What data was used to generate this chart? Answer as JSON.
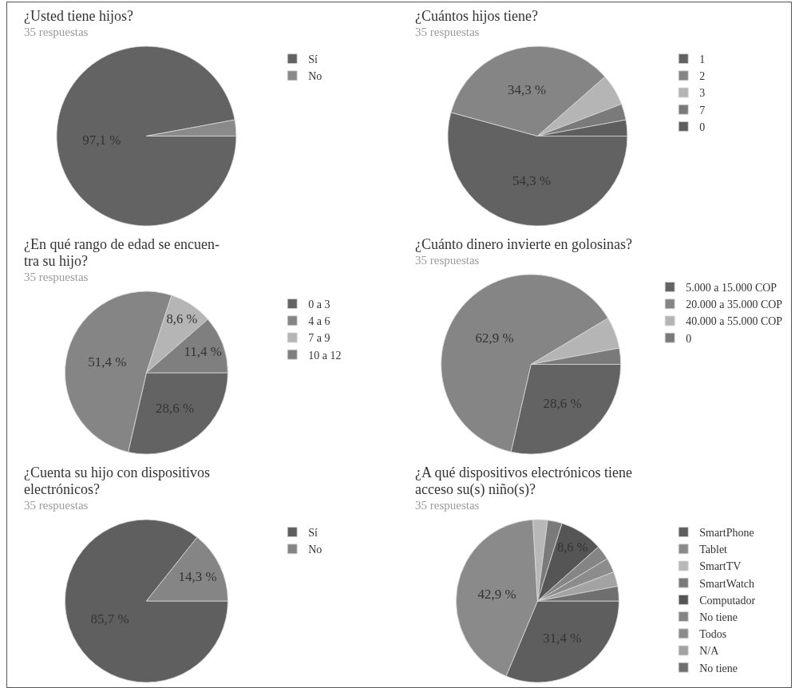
{
  "chart_data": [
    {
      "type": "pie",
      "title": "¿Usted tiene hijos?",
      "subtitle": "35 respuestas",
      "categories": [
        "Sí",
        "No"
      ],
      "values": [
        97.1,
        2.9
      ],
      "colors": [
        "#636363",
        "#8a8a8a"
      ],
      "value_labels": [
        "97,1 %",
        null
      ],
      "legend": "top right"
    },
    {
      "type": "pie",
      "title": "¿Cuántos hijos tiene?",
      "subtitle": "35 respuestas",
      "categories": [
        "1",
        "2",
        "3",
        "7",
        "0"
      ],
      "values": [
        54.3,
        34.3,
        5.7,
        2.9,
        2.9
      ],
      "colors": [
        "#626262",
        "#858585",
        "#b5b5b5",
        "#7a7a7a",
        "#5e5e5e"
      ],
      "value_labels": [
        "54,3 %",
        "34,3 %",
        null,
        null,
        null
      ],
      "legend": "top right"
    },
    {
      "type": "pie",
      "title": "¿En qué rango de edad se encuen-\ntra su hijo?",
      "subtitle": "35 respuestas",
      "categories": [
        "0 a 3",
        "4 a 6",
        "7 a 9",
        "10 a 12"
      ],
      "values": [
        28.6,
        51.4,
        8.6,
        11.4
      ],
      "colors": [
        "#636363",
        "#858585",
        "#b5b5b5",
        "#7f7f7f"
      ],
      "value_labels": [
        "28,6 %",
        "51,4 %",
        "8,6 %",
        "11,4 %"
      ],
      "legend": "top right"
    },
    {
      "type": "pie",
      "title": "¿Cuánto dinero invierte en golosinas?",
      "subtitle": "35 respuestas",
      "categories": [
        "5.000 a 15.000 COP",
        "20.000 a 35.000 COP",
        "40.000 a 55.000 COP",
        "0"
      ],
      "values": [
        28.6,
        62.9,
        5.7,
        2.9
      ],
      "colors": [
        "#636363",
        "#858585",
        "#b5b5b5",
        "#7a7a7a"
      ],
      "value_labels": [
        "28,6 %",
        "62,9 %",
        null,
        null
      ],
      "legend": "top right"
    },
    {
      "type": "pie",
      "title": "¿Cuenta su hijo con dispositivos\nelectrónicos?",
      "subtitle": "35 respuestas",
      "categories": [
        "Sí",
        "No"
      ],
      "values": [
        85.7,
        14.3
      ],
      "colors": [
        "#5f5f5f",
        "#858585"
      ],
      "value_labels": [
        "85,7 %",
        "14,3 %"
      ],
      "legend": "top right"
    },
    {
      "type": "pie",
      "title": "¿A qué dispositivos electrónicos tiene\nacceso su(s) niño(s)?",
      "subtitle": "35 respuestas",
      "categories": [
        "SmartPhone",
        "Tablet",
        "SmartTV",
        "SmartWatch",
        "Computador",
        "No tiene",
        "Todos",
        "N/A",
        "No tiene"
      ],
      "values": [
        31.4,
        42.9,
        2.9,
        2.9,
        8.6,
        2.9,
        2.9,
        2.9,
        2.9
      ],
      "colors": [
        "#5e5e5e",
        "#8a8a8a",
        "#b8b8b8",
        "#7a7a7a",
        "#555555",
        "#858585",
        "#8c8c8c",
        "#a3a3a3",
        "#6f6f6f"
      ],
      "value_labels": [
        "31,4 %",
        "42,9 %",
        null,
        null,
        "8,6 %",
        null,
        null,
        null,
        null
      ],
      "legend": "top right"
    }
  ]
}
